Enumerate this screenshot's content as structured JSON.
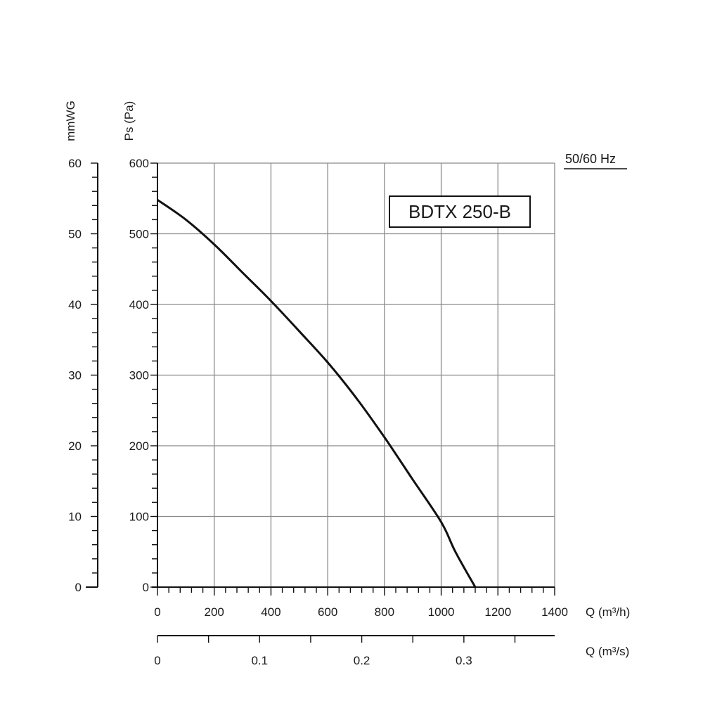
{
  "chart_data": {
    "type": "line",
    "model_label": "BDTX 250-B",
    "frequency_label": "50/60 Hz",
    "grid": true,
    "xlabel": "Q (m³/h)",
    "xlim": [
      0,
      1400
    ],
    "xticks": [
      "0",
      "200",
      "400",
      "600",
      "800",
      "1000",
      "1200",
      "1400"
    ],
    "ylabel": "Ps (Pa)",
    "ylim": [
      0,
      600
    ],
    "yticks": [
      "0",
      "100",
      "200",
      "300",
      "400",
      "500",
      "600"
    ],
    "secondary_y": {
      "label": "mmWG",
      "lim": [
        0,
        60
      ],
      "ticks": [
        "0",
        "10",
        "20",
        "30",
        "40",
        "50",
        "60"
      ]
    },
    "secondary_x": {
      "label": "Q (m³/s)",
      "ticks": [
        "0",
        "0.1",
        "0.2",
        "0.3"
      ]
    },
    "series": [
      {
        "x": [
          0,
          100,
          200,
          300,
          400,
          500,
          600,
          700,
          800,
          900,
          1000,
          1050,
          1120
        ],
        "y": [
          548,
          520,
          485,
          445,
          405,
          362,
          318,
          268,
          212,
          152,
          92,
          50,
          0
        ]
      }
    ]
  }
}
